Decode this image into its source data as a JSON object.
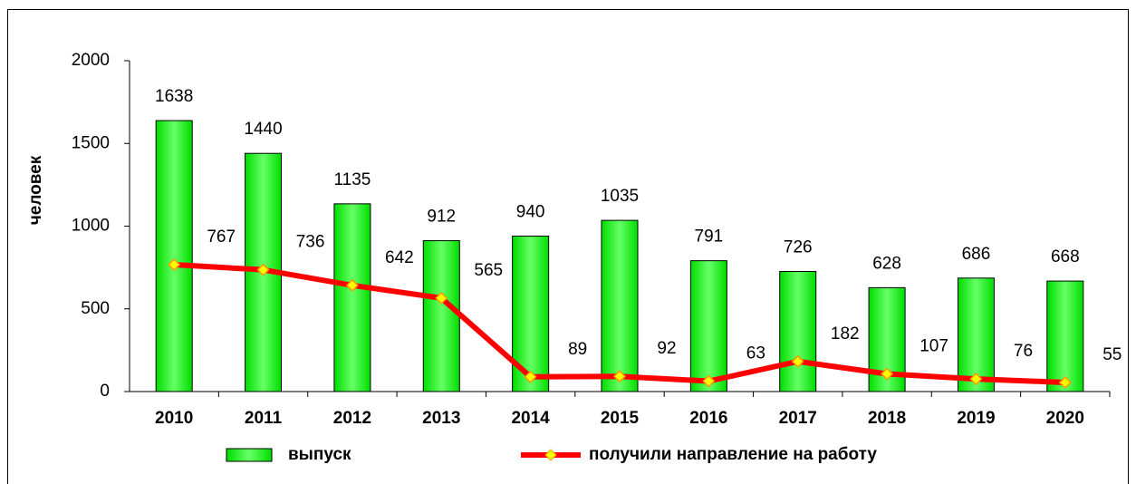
{
  "chart_data": {
    "type": "bar",
    "y_label": "человек",
    "categories": [
      "2010",
      "2011",
      "2012",
      "2013",
      "2014",
      "2015",
      "2016",
      "2017",
      "2018",
      "2019",
      "2020"
    ],
    "series": [
      {
        "name": "выпуск",
        "type": "bar",
        "color": "#00ee00",
        "values": [
          1638,
          1440,
          1135,
          912,
          940,
          1035,
          791,
          726,
          628,
          686,
          668
        ]
      },
      {
        "name": "получили направление на работу",
        "type": "line",
        "color": "#ff0000",
        "marker_color": "#ffff00",
        "values": [
          767,
          736,
          642,
          565,
          89,
          92,
          63,
          182,
          107,
          76,
          55
        ]
      }
    ],
    "ylim": [
      0,
      2000
    ],
    "yticks": [
      0,
      500,
      1000,
      1500,
      2000
    ],
    "grid": false
  }
}
